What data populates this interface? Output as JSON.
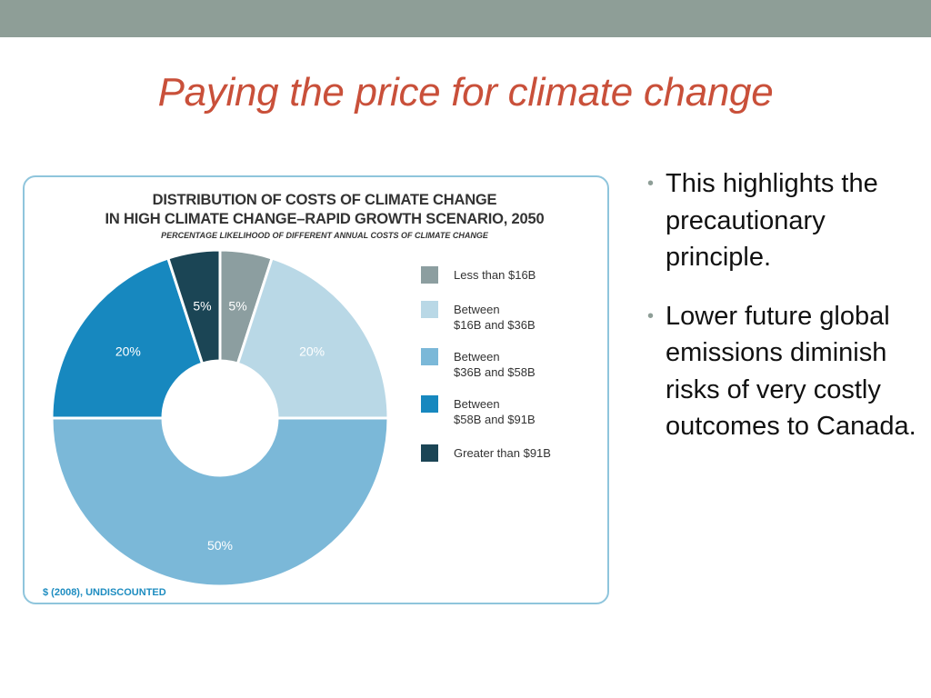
{
  "slide": {
    "title": "Paying the price for climate change",
    "bullets": [
      "This highlights the precautionary principle.",
      "Lower future global emissions diminish risks of very costly outcomes to Canada."
    ]
  },
  "colors": {
    "top_band": "#8e9e97",
    "title": "#c9503a",
    "card_border": "#8fc5dc",
    "footnote": "#1d8cc0"
  },
  "chart_data": {
    "type": "pie",
    "style": "donut",
    "title_lines": [
      "DISTRIBUTION OF COSTS OF CLIMATE CHANGE",
      "IN HIGH CLIMATE CHANGE–RAPID GROWTH SCENARIO, 2050"
    ],
    "subtitle": "PERCENTAGE LIKELIHOOD OF DIFFERENT ANNUAL COSTS OF CLIMATE CHANGE",
    "footnote": "$ (2008), UNDISCOUNTED",
    "legend_position": "right",
    "slices": [
      {
        "label": "Less than $16B",
        "value": 5,
        "data_label": "5%",
        "color": "#8c9ea0"
      },
      {
        "label": "Between\n$16B and $36B",
        "value": 20,
        "data_label": "20%",
        "color": "#b9d8e6"
      },
      {
        "label": "Between\n$36B and $58B",
        "value": 50,
        "data_label": "50%",
        "color": "#7bb8d8"
      },
      {
        "label": "Between\n$58B and $91B",
        "value": 20,
        "data_label": "20%",
        "color": "#1788bf"
      },
      {
        "label": "Greater than $91B",
        "value": 5,
        "data_label": "5%",
        "color": "#1b4555"
      }
    ]
  }
}
